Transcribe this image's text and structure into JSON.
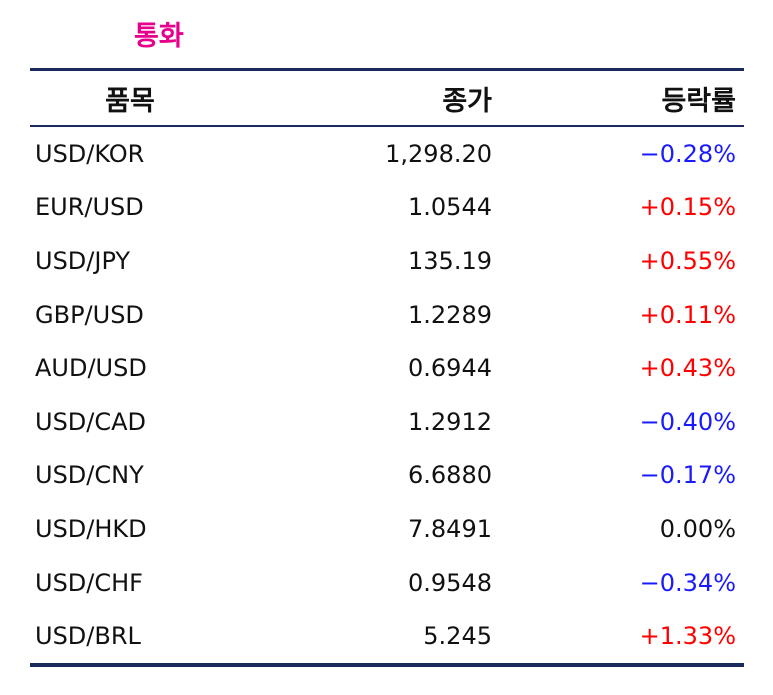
{
  "title": "통화",
  "header": {
    "item": "품목",
    "close": "종가",
    "change": "등락률"
  },
  "colors": {
    "title": "#e6008c",
    "rule": "#1b2a5c",
    "up": "#ff0000",
    "down": "#1a1aff"
  },
  "rows": [
    {
      "item": "USD/KOR",
      "close": "1,298.20",
      "change": "−0.28%",
      "dir": "down"
    },
    {
      "item": "EUR/USD",
      "close": "1.0544",
      "change": "+0.15%",
      "dir": "up"
    },
    {
      "item": "USD/JPY",
      "close": "135.19",
      "change": "+0.55%",
      "dir": "up"
    },
    {
      "item": "GBP/USD",
      "close": "1.2289",
      "change": "+0.11%",
      "dir": "up"
    },
    {
      "item": "AUD/USD",
      "close": "0.6944",
      "change": "+0.43%",
      "dir": "up"
    },
    {
      "item": "USD/CAD",
      "close": "1.2912",
      "change": "−0.40%",
      "dir": "down"
    },
    {
      "item": "USD/CNY",
      "close": "6.6880",
      "change": "−0.17%",
      "dir": "down"
    },
    {
      "item": "USD/HKD",
      "close": "7.8491",
      "change": "0.00%",
      "dir": "flat"
    },
    {
      "item": "USD/CHF",
      "close": "0.9548",
      "change": "−0.34%",
      "dir": "down"
    },
    {
      "item": "USD/BRL",
      "close": "5.245",
      "change": "+1.33%",
      "dir": "up"
    }
  ]
}
